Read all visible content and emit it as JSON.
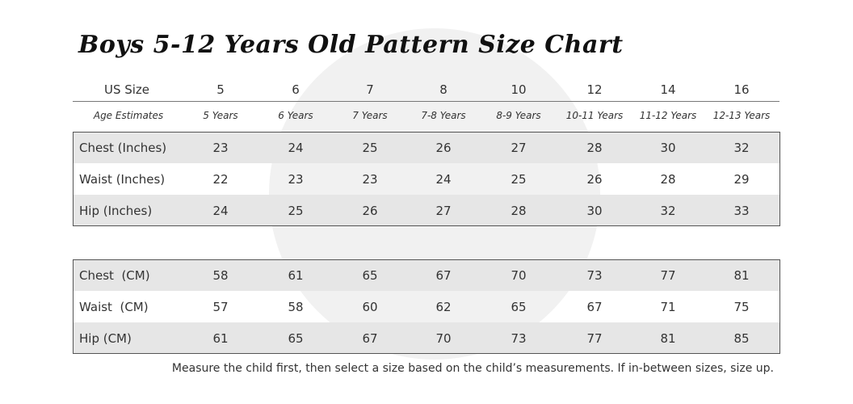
{
  "title": "Boys 5-12 Years Old Pattern Size Chart",
  "header": {
    "label": "US Size",
    "sizes": [
      5,
      6,
      7,
      8,
      10,
      12,
      14,
      16
    ]
  },
  "ages": {
    "label": "Age Estimates",
    "values": [
      "5 Years",
      "6 Years",
      "7 Years",
      "7-8 Years",
      "8-9 Years",
      "10-11 Years",
      "11-12 Years",
      "12-13 Years"
    ]
  },
  "inches": {
    "rows": [
      {
        "label": "Chest (Inches)",
        "values": [
          23,
          24,
          25,
          26,
          27,
          28,
          30,
          32
        ]
      },
      {
        "label": "Waist (Inches)",
        "values": [
          22,
          23,
          23,
          24,
          25,
          26,
          28,
          29
        ]
      },
      {
        "label": "Hip (Inches)",
        "values": [
          24,
          25,
          26,
          27,
          28,
          30,
          32,
          33
        ]
      }
    ]
  },
  "cm": {
    "rows": [
      {
        "label": "Chest  (CM)",
        "values": [
          58,
          61,
          65,
          67,
          70,
          73,
          77,
          81
        ]
      },
      {
        "label": "Waist  (CM)",
        "values": [
          57,
          58,
          60,
          62,
          65,
          67,
          71,
          75
        ]
      },
      {
        "label": "Hip (CM)",
        "values": [
          61,
          65,
          67,
          70,
          73,
          77,
          81,
          85
        ]
      }
    ]
  },
  "footnote": "Measure the child first, then select a size based on the child’s measurements. If in-between sizes, size up."
}
